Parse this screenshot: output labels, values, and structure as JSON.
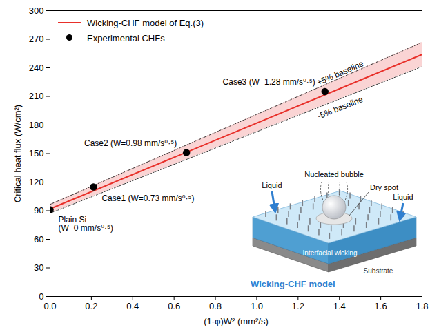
{
  "chart_data": {
    "type": "line",
    "x_label": "(1-φ)W² (mm²/s)",
    "y_label": "Critical heat flux (W/cm²)",
    "xlim": [
      0,
      1.8
    ],
    "ylim": [
      0,
      300
    ],
    "xticks": [
      {
        "value": 0,
        "label": "0.0"
      },
      0.2,
      0.4,
      0.6,
      0.8,
      {
        "value": 1,
        "label": "1.0"
      },
      1.2,
      1.4,
      1.6,
      1.8
    ],
    "yticks": [
      0,
      30,
      60,
      90,
      120,
      150,
      180,
      210,
      240,
      270,
      300
    ],
    "grid": false,
    "legend": "top-left",
    "series": [
      {
        "name": "Wicking-CHF model of Eq.(3)",
        "type": "line",
        "color": "#e8302a",
        "line_style": "solid",
        "x": [
          0,
          1.8
        ],
        "values": [
          92,
          254
        ],
        "band": {
          "color": "#f3a0a0",
          "lower": [
            87.4,
            241.3
          ],
          "upper": [
            96.6,
            266.7
          ],
          "labels": [
            "+5% baseline",
            "-5% baseline"
          ]
        }
      },
      {
        "name": "Experimental CHFs",
        "type": "scatter",
        "color": "#000000",
        "marker": "circle",
        "x": [
          0,
          0.21,
          0.66,
          1.33
        ],
        "values": [
          91,
          115,
          151,
          215
        ],
        "labels": [
          "Plain Si\n(W=0 mm/s⁰·⁵)",
          "Case1 (W=0.73 mm/s⁰·⁵)",
          "Case2 (W=0.98 mm/s⁰·⁵)",
          "Case3 (W=1.28 mm/s⁰·⁵)"
        ]
      }
    ],
    "inset": {
      "title": "Wicking-CHF model",
      "bubble": "Nucleated bubble",
      "dry_spot": "Dry spot",
      "liquid": "Liquid",
      "wicking": "Interfacial wicking",
      "substrate": "Substrate"
    }
  }
}
